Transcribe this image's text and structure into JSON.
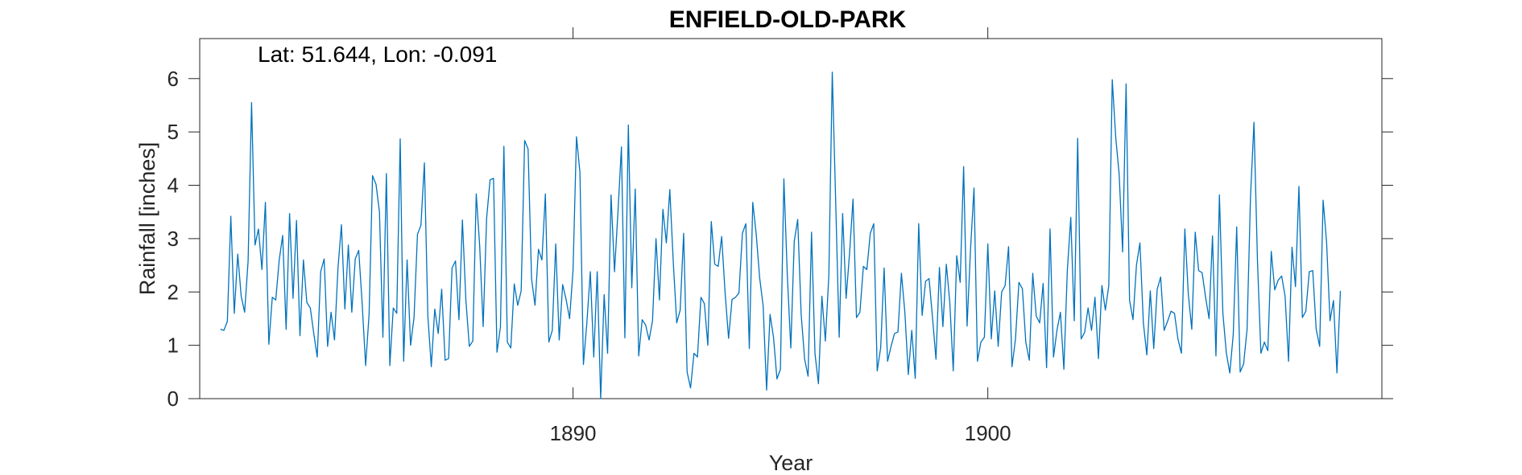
{
  "chart_data": {
    "type": "line",
    "title": "ENFIELD-OLD-PARK",
    "annotation": "Lat: 51.644, Lon: -0.091",
    "xlabel": "Year",
    "ylabel": "Rainfall [inches]",
    "xlim": [
      1881.0,
      1909.5
    ],
    "ylim": [
      0,
      6.75
    ],
    "xticks": [
      1890,
      1900
    ],
    "yticks": [
      0,
      1,
      2,
      3,
      4,
      5,
      6
    ],
    "x_start": 1881.5,
    "x_step": 0.08333333,
    "grid": false,
    "series": [
      {
        "color": "#0072BD",
        "values": [
          1.3,
          1.28,
          1.45,
          3.42,
          1.6,
          2.71,
          1.92,
          1.62,
          2.58,
          5.55,
          2.88,
          3.18,
          2.42,
          3.68,
          1.02,
          1.9,
          1.85,
          2.6,
          3.06,
          1.3,
          3.47,
          1.88,
          3.34,
          1.18,
          2.6,
          1.8,
          1.7,
          1.22,
          0.78,
          2.38,
          2.62,
          0.98,
          1.62,
          1.1,
          2.45,
          3.26,
          1.68,
          2.88,
          1.62,
          2.62,
          2.78,
          1.78,
          0.62,
          1.58,
          4.18,
          4.02,
          3.5,
          1.15,
          4.22,
          0.62,
          1.7,
          1.6,
          4.87,
          0.7,
          2.6,
          1.0,
          1.52,
          3.08,
          3.25,
          4.42,
          1.55,
          0.6,
          1.68,
          1.22,
          2.05,
          0.72,
          0.75,
          2.45,
          2.58,
          1.48,
          3.35,
          1.85,
          0.98,
          1.08,
          3.84,
          2.86,
          1.35,
          3.38,
          4.1,
          4.13,
          0.87,
          1.34,
          4.73,
          1.06,
          0.95,
          2.15,
          1.75,
          2.02,
          4.84,
          4.68,
          2.25,
          1.75,
          2.8,
          2.6,
          3.84,
          1.06,
          1.28,
          2.9,
          1.1,
          2.14,
          1.86,
          1.5,
          2.4,
          4.91,
          4.24,
          0.64,
          1.42,
          2.38,
          0.78,
          2.38,
          0.0,
          1.95,
          0.85,
          3.82,
          2.38,
          3.5,
          4.72,
          1.14,
          5.13,
          2.08,
          3.93,
          0.8,
          1.48,
          1.38,
          1.1,
          1.46,
          3.0,
          1.85,
          3.55,
          2.92,
          3.92,
          2.56,
          1.42,
          1.66,
          3.1,
          0.5,
          0.2,
          0.85,
          0.78,
          1.9,
          1.78,
          1.0,
          3.32,
          2.52,
          2.48,
          3.04,
          1.98,
          1.13,
          1.86,
          1.9,
          1.98,
          3.1,
          3.28,
          0.94,
          3.68,
          3.08,
          2.26,
          1.74,
          0.16,
          1.58,
          1.15,
          0.37,
          0.55,
          4.12,
          2.3,
          0.95,
          2.95,
          3.36,
          1.58,
          0.74,
          0.42,
          3.12,
          0.84,
          0.28,
          1.92,
          1.08,
          2.3,
          6.12,
          3.66,
          1.15,
          3.47,
          1.88,
          2.72,
          3.74,
          1.52,
          1.62,
          2.48,
          2.42,
          3.1,
          3.28,
          0.52,
          0.95,
          2.45,
          0.7,
          0.98,
          1.22,
          1.25,
          2.35,
          1.62,
          0.45,
          1.28,
          0.38,
          3.28,
          1.56,
          2.2,
          2.25,
          1.52,
          0.74,
          2.46,
          1.35,
          2.52,
          1.8,
          0.52,
          2.68,
          2.18,
          4.35,
          1.36,
          2.8,
          3.95,
          0.7,
          1.06,
          1.15,
          2.9,
          1.12,
          2.02,
          0.98,
          2.0,
          2.12,
          2.85,
          0.6,
          1.12,
          2.18,
          2.06,
          1.05,
          0.72,
          2.35,
          1.55,
          1.42,
          2.16,
          0.58,
          3.18,
          0.78,
          1.28,
          1.62,
          0.55,
          2.4,
          3.4,
          1.46,
          4.88,
          1.12,
          1.24,
          1.7,
          1.28,
          1.9,
          0.75,
          2.12,
          1.66,
          2.12,
          5.98,
          4.9,
          4.2,
          2.75,
          5.9,
          1.85,
          1.48,
          2.5,
          2.92,
          1.42,
          0.82,
          2.02,
          0.94,
          2.05,
          2.28,
          1.28,
          1.45,
          1.64,
          1.6,
          1.12,
          0.85,
          3.18,
          1.96,
          1.3,
          3.12,
          2.4,
          2.36,
          1.9,
          1.5,
          3.05,
          0.8,
          3.82,
          1.6,
          0.86,
          0.48,
          1.2,
          3.22,
          0.5,
          0.65,
          1.3,
          3.8,
          5.18,
          2.6,
          0.85,
          1.06,
          0.9,
          2.76,
          2.04,
          2.22,
          2.3,
          1.92,
          0.7,
          2.84,
          2.1,
          3.98,
          1.52,
          1.64,
          2.38,
          2.4,
          1.3,
          0.98,
          3.72,
          2.94,
          1.46,
          1.84,
          0.48,
          2.02
        ]
      }
    ]
  }
}
